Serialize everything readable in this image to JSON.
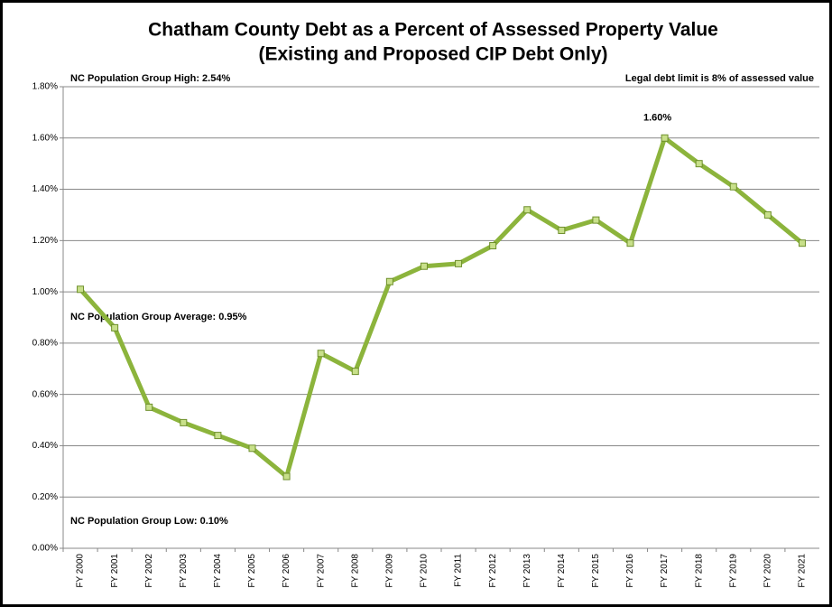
{
  "chart_data": {
    "type": "line",
    "title": [
      "Chatham County Debt as a Percent of Assessed Property Value",
      "(Existing and Proposed CIP Debt Only)"
    ],
    "annotations": [
      "NC Population Group High: 2.54%",
      "Legal debt limit is 8% of assessed value",
      "NC Population Group Average: 0.95%",
      "NC Population Group Low: 0.10%"
    ],
    "categories": [
      "FY 2000",
      "FY 2001",
      "FY 2002",
      "FY 2003",
      "FY 2004",
      "FY 2005",
      "FY 2006",
      "FY 2007",
      "FY 2008",
      "FY 2009",
      "FY 2010",
      "FY 2011",
      "FY 2012",
      "FY 2013",
      "FY 2014",
      "FY 2015",
      "FY 2016",
      "FY 2017",
      "FY 2018",
      "FY 2019",
      "FY 2020",
      "FY 2021"
    ],
    "series": [
      {
        "color": "#8cb43c",
        "values": [
          1.01,
          0.86,
          0.55,
          0.49,
          0.44,
          0.39,
          0.28,
          0.76,
          0.69,
          1.04,
          1.1,
          1.11,
          1.18,
          1.32,
          1.24,
          1.28,
          1.19,
          1.6,
          1.5,
          1.41,
          1.3,
          1.19
        ],
        "value_labels": [
          null,
          null,
          null,
          null,
          null,
          null,
          null,
          null,
          null,
          null,
          null,
          null,
          null,
          null,
          null,
          null,
          null,
          "1.60%",
          null,
          null,
          null,
          null
        ]
      }
    ],
    "ylim": [
      0,
      1.8
    ],
    "yticks": [
      {
        "value": 0,
        "label": "0.00%"
      },
      {
        "value": 0.2,
        "label": "0.20%"
      },
      {
        "value": 0.4,
        "label": "0.40%"
      },
      {
        "value": 0.6,
        "label": "0.60%"
      },
      {
        "value": 0.8,
        "label": "0.80%"
      },
      {
        "value": 1,
        "label": "1.00%"
      },
      {
        "value": 1.2,
        "label": "1.20%"
      },
      {
        "value": 1.4,
        "label": "1.40%"
      },
      {
        "value": 1.6,
        "label": "1.60%"
      },
      {
        "value": 1.8,
        "label": "1.80%"
      }
    ],
    "grid": true
  }
}
